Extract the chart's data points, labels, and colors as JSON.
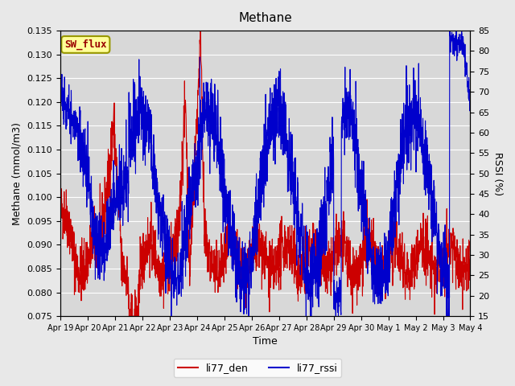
{
  "title": "Methane",
  "xlabel": "Time",
  "ylabel_left": "Methane (mmol/m3)",
  "ylabel_right": "RSSI (%)",
  "ylim_left": [
    0.075,
    0.135
  ],
  "ylim_right": [
    15,
    85
  ],
  "yticks_left": [
    0.075,
    0.08,
    0.085,
    0.09,
    0.095,
    0.1,
    0.105,
    0.11,
    0.115,
    0.12,
    0.125,
    0.13,
    0.135
  ],
  "yticks_right": [
    15,
    20,
    25,
    30,
    35,
    40,
    45,
    50,
    55,
    60,
    65,
    70,
    75,
    80,
    85
  ],
  "xtick_labels": [
    "Apr 19",
    "Apr 20",
    "Apr 21",
    "Apr 22",
    "Apr 23",
    "Apr 24",
    "Apr 25",
    "Apr 26",
    "Apr 27",
    "Apr 28",
    "Apr 29",
    "Apr 30",
    "May 1",
    "May 2",
    "May 3",
    "May 4"
  ],
  "color_red": "#cc0000",
  "color_blue": "#0000cc",
  "legend_label_red": "li77_den",
  "legend_label_blue": "li77_rssi",
  "sw_flux_box_color": "#ffff99",
  "sw_flux_border_color": "#999900",
  "sw_flux_text_color": "#990000",
  "background_color": "#e8e8e8",
  "plot_bg_color": "#d8d8d8"
}
